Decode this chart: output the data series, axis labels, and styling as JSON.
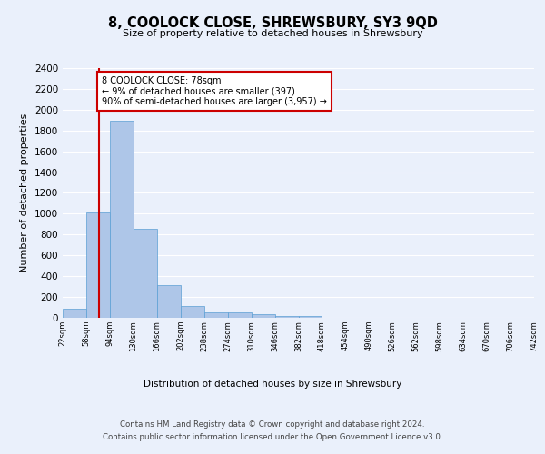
{
  "title": "8, COOLOCK CLOSE, SHREWSBURY, SY3 9QD",
  "subtitle": "Size of property relative to detached houses in Shrewsbury",
  "xlabel": "Distribution of detached houses by size in Shrewsbury",
  "ylabel": "Number of detached properties",
  "bin_edges": [
    22,
    58,
    94,
    130,
    166,
    202,
    238,
    274,
    310,
    346,
    382,
    418,
    454,
    490,
    526,
    562,
    598,
    634,
    670,
    706,
    742
  ],
  "bar_heights": [
    90,
    1010,
    1890,
    855,
    315,
    115,
    55,
    50,
    35,
    20,
    20,
    0,
    0,
    0,
    0,
    0,
    0,
    0,
    0,
    0
  ],
  "bar_color": "#aec6e8",
  "bar_edgecolor": "#5a9fd4",
  "property_size": 78,
  "vline_color": "#cc0000",
  "annotation_line1": "8 COOLOCK CLOSE: 78sqm",
  "annotation_line2": "← 9% of detached houses are smaller (397)",
  "annotation_line3": "90% of semi-detached houses are larger (3,957) →",
  "annotation_box_edgecolor": "#cc0000",
  "ylim": [
    0,
    2400
  ],
  "yticks": [
    0,
    200,
    400,
    600,
    800,
    1000,
    1200,
    1400,
    1600,
    1800,
    2000,
    2200,
    2400
  ],
  "tick_labels": [
    "22sqm",
    "58sqm",
    "94sqm",
    "130sqm",
    "166sqm",
    "202sqm",
    "238sqm",
    "274sqm",
    "310sqm",
    "346sqm",
    "382sqm",
    "418sqm",
    "454sqm",
    "490sqm",
    "526sqm",
    "562sqm",
    "598sqm",
    "634sqm",
    "670sqm",
    "706sqm",
    "742sqm"
  ],
  "footer_line1": "Contains HM Land Registry data © Crown copyright and database right 2024.",
  "footer_line2": "Contains public sector information licensed under the Open Government Licence v3.0.",
  "background_color": "#eaf0fb",
  "grid_color": "#ffffff"
}
